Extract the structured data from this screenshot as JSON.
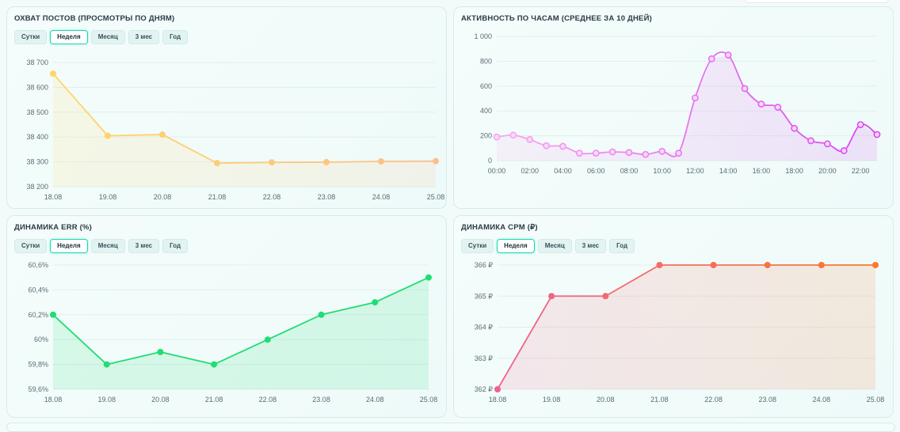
{
  "colors": {
    "reach": "#fdd767",
    "reach_end": "#fdbf8a",
    "activity": "#d946ef",
    "activity_start": "#f9a8ee",
    "err": "#22dc74",
    "cpm_start": "#f0618e",
    "cpm_end": "#f97a2a"
  },
  "charts": [
    {
      "id": "reach",
      "title": "ОХВАТ ПОСТОВ (ПРОСМОТРЫ ПО ДНЯМ)",
      "tabs": [
        {
          "label": "Сутки",
          "active": false
        },
        {
          "label": "Неделя",
          "active": true
        },
        {
          "label": "Месяц",
          "active": false
        },
        {
          "label": "3 мес",
          "active": false
        },
        {
          "label": "Год",
          "active": false
        }
      ]
    },
    {
      "id": "activity",
      "title": "АКТИВНОСТЬ ПО ЧАСАМ (СРЕДНЕЕ ЗА 10 ДНЕЙ)",
      "tabs": []
    },
    {
      "id": "err",
      "title": "ДИНАМИКА ERR (%)",
      "tabs": [
        {
          "label": "Сутки",
          "active": false
        },
        {
          "label": "Неделя",
          "active": true
        },
        {
          "label": "Месяц",
          "active": false
        },
        {
          "label": "3 мес",
          "active": false
        },
        {
          "label": "Год",
          "active": false
        }
      ]
    },
    {
      "id": "cpm",
      "title": "ДИНАМИКА CPM (₽)",
      "tabs": [
        {
          "label": "Сутки",
          "active": false
        },
        {
          "label": "Неделя",
          "active": true
        },
        {
          "label": "Месяц",
          "active": false
        },
        {
          "label": "3 мес",
          "active": false
        },
        {
          "label": "Год",
          "active": false
        }
      ]
    }
  ],
  "chart_data": [
    {
      "id": "reach",
      "type": "area",
      "title": "ОХВАТ ПОСТОВ (ПРОСМОТРЫ ПО ДНЯМ)",
      "categories": [
        "18.08",
        "19.08",
        "20.08",
        "21.08",
        "22.08",
        "23.08",
        "24.08",
        "25.08"
      ],
      "values": [
        38655,
        38405,
        38410,
        38295,
        38298,
        38299,
        38302,
        38303
      ],
      "ylim": [
        38200,
        38700
      ],
      "yticks": [
        38200,
        38300,
        38400,
        38500,
        38600,
        38700
      ],
      "ytick_labels": [
        "38 200",
        "38 300",
        "38 400",
        "38 500",
        "38 600",
        "38 700"
      ],
      "grid": true
    },
    {
      "id": "activity",
      "type": "area",
      "title": "АКТИВНОСТЬ ПО ЧАСАМ (СРЕДНЕЕ ЗА 10 ДНЕЙ)",
      "x": [
        0,
        1,
        2,
        3,
        4,
        5,
        6,
        7,
        8,
        9,
        10,
        11,
        12,
        13,
        14,
        15,
        16,
        17,
        18,
        19,
        20,
        21,
        22,
        23
      ],
      "values": [
        190,
        205,
        170,
        120,
        115,
        60,
        60,
        70,
        65,
        50,
        75,
        60,
        505,
        820,
        850,
        580,
        455,
        430,
        260,
        160,
        135,
        80,
        290,
        210
      ],
      "xtick_positions": [
        0,
        2,
        4,
        6,
        8,
        10,
        12,
        14,
        16,
        18,
        20,
        22
      ],
      "xtick_labels": [
        "00:00",
        "02:00",
        "04:00",
        "06:00",
        "08:00",
        "10:00",
        "12:00",
        "14:00",
        "16:00",
        "18:00",
        "20:00",
        "22:00"
      ],
      "ylim": [
        0,
        1000
      ],
      "yticks": [
        0,
        200,
        400,
        600,
        800,
        1000
      ],
      "ytick_labels": [
        "0",
        "200",
        "400",
        "600",
        "800",
        "1 000"
      ],
      "grid": true
    },
    {
      "id": "err",
      "type": "area",
      "title": "ДИНАМИКА ERR (%)",
      "categories": [
        "18.08",
        "19.08",
        "20.08",
        "21.08",
        "22.08",
        "23.08",
        "24.08",
        "25.08"
      ],
      "values": [
        60.2,
        59.8,
        59.9,
        59.8,
        60.0,
        60.2,
        60.3,
        60.5
      ],
      "ylim": [
        59.6,
        60.6
      ],
      "yticks": [
        59.6,
        59.8,
        60.0,
        60.2,
        60.4,
        60.6
      ],
      "ytick_labels": [
        "59,6%",
        "59,8%",
        "60%",
        "60,2%",
        "60,4%",
        "60,6%"
      ],
      "grid": true
    },
    {
      "id": "cpm",
      "type": "area",
      "title": "ДИНАМИКА CPM (₽)",
      "categories": [
        "18.08",
        "19.08",
        "20.08",
        "21.08",
        "22.08",
        "23.08",
        "24.08",
        "25.08"
      ],
      "values": [
        362,
        365,
        365,
        366,
        366,
        366,
        366,
        366
      ],
      "ylim": [
        362,
        366
      ],
      "yticks": [
        362,
        363,
        364,
        365,
        366
      ],
      "ytick_labels": [
        "362 ₽",
        "363 ₽",
        "364 ₽",
        "365 ₽",
        "366 ₽"
      ],
      "grid": true
    }
  ]
}
